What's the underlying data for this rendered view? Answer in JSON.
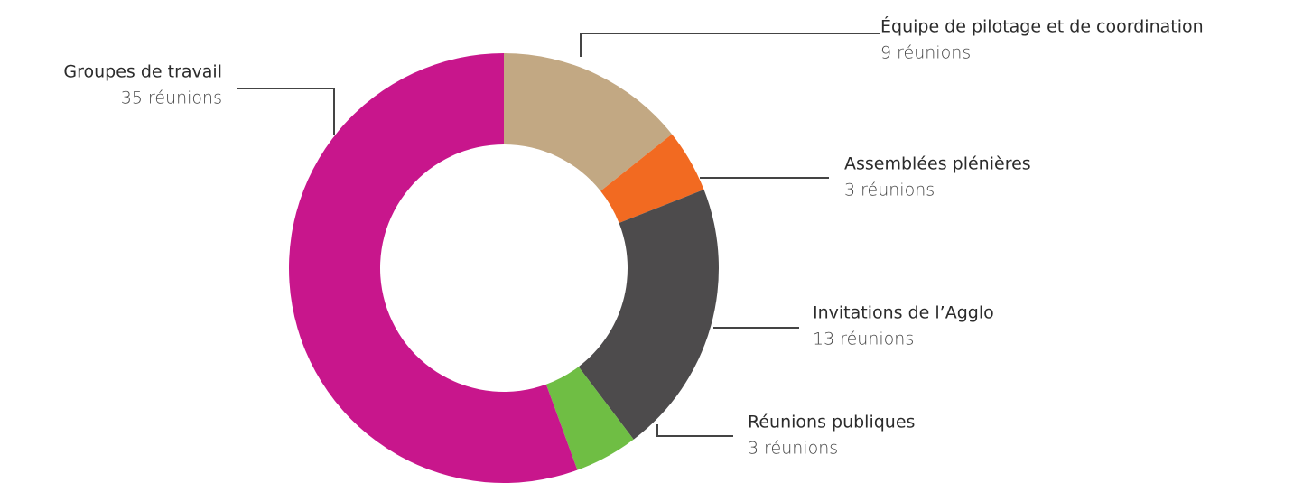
{
  "chart_data": {
    "type": "pie",
    "donut": true,
    "categories": [
      "Équipe de pilotage et de coordination",
      "Assemblées plénières",
      "Invitations de l’Agglo",
      "Réunions publiques",
      "Groupes de travail"
    ],
    "values": [
      9,
      3,
      13,
      3,
      35
    ],
    "value_labels": [
      "9 réunions",
      "3 réunions",
      "13 réunions",
      "3 réunions",
      "35 réunions"
    ],
    "colors": [
      "#c2a883",
      "#f26a21",
      "#4d4b4c",
      "#6fbe44",
      "#c8168c"
    ]
  }
}
